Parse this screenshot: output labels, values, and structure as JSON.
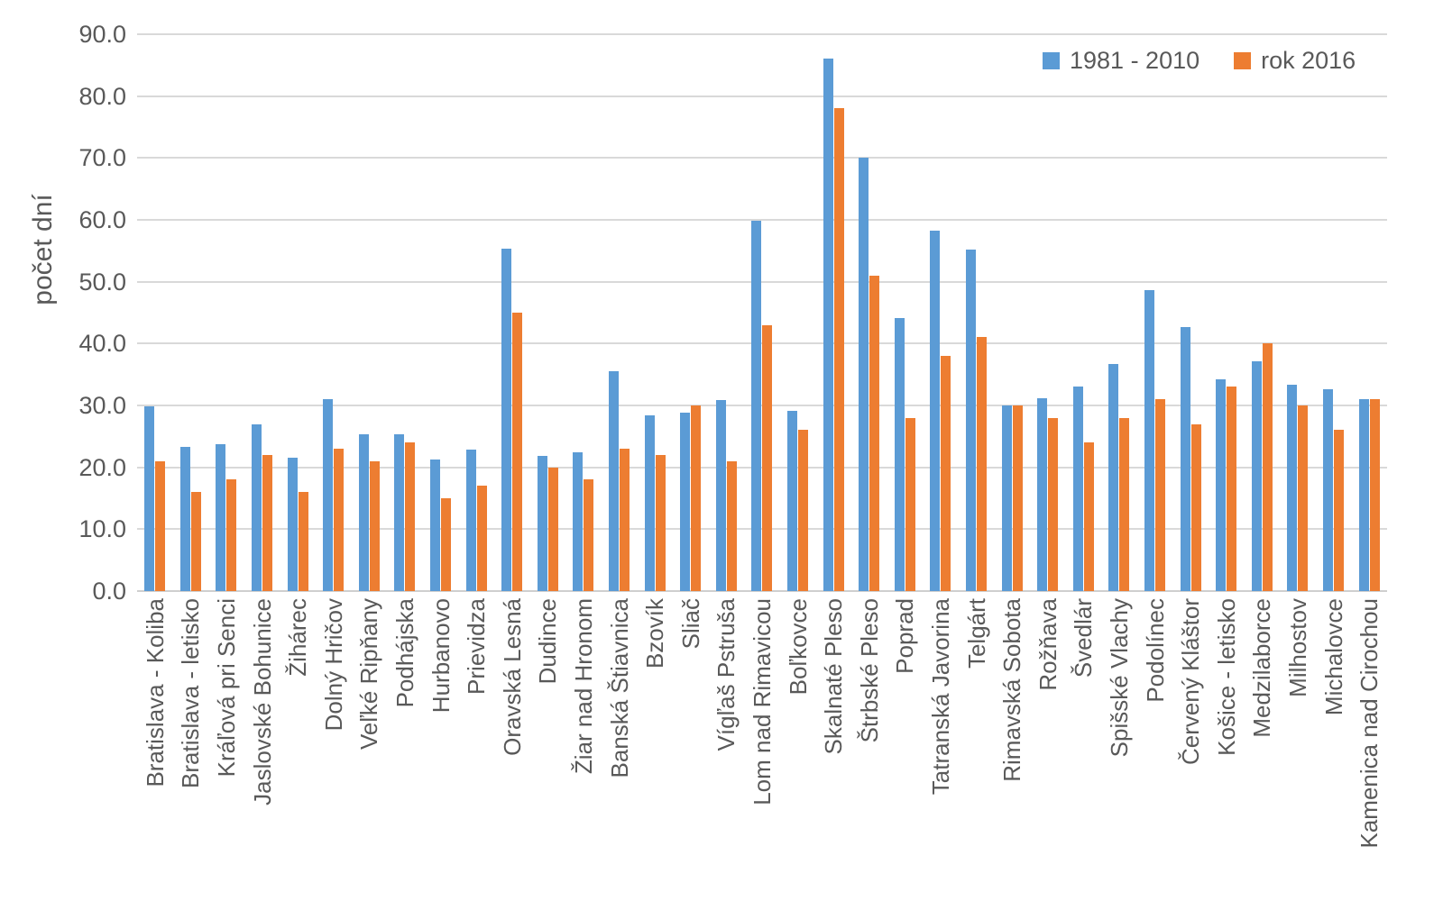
{
  "chart_data": {
    "type": "bar",
    "title": "",
    "ylabel": "počet dní",
    "xlabel": "",
    "ylim": [
      0,
      90
    ],
    "ytick_step": 10,
    "yticks": [
      "0.0",
      "10.0",
      "20.0",
      "30.0",
      "40.0",
      "50.0",
      "60.0",
      "70.0",
      "80.0",
      "90.0"
    ],
    "grid": true,
    "legend_position": "top-right",
    "categories": [
      "Bratislava - Koliba",
      "Bratislava - letisko",
      "Kráľová pri Senci",
      "Jaslovské Bohunice",
      "Žihárec",
      "Dolný Hričov",
      "Veľké Ripňany",
      "Podhájska",
      "Hurbanovo",
      "Prievidza",
      "Oravská Lesná",
      "Dudince",
      "Žiar nad Hronom",
      "Banská Štiavnica",
      "Bzovík",
      "Sliač",
      "Vígľaš Pstruša",
      "Lom nad Rimavicou",
      "Boľkovce",
      "Skalnaté Pleso",
      "Štrbské Pleso",
      "Poprad",
      "Tatranská Javorina",
      "Telgárt",
      "Rimavská Sobota",
      "Rožňava",
      "Švedlár",
      "Spišské Vlachy",
      "Podolínec",
      "Červený Kláštor",
      "Košice - letisko",
      "Medzilaborce",
      "Milhostov",
      "Michalovce",
      "Kamenica nad Cirochou"
    ],
    "series": [
      {
        "name": "1981 - 2010",
        "color": "#5B9BD5",
        "values": [
          29.8,
          23.3,
          23.7,
          27.0,
          21.5,
          31.0,
          25.4,
          25.3,
          21.3,
          22.8,
          55.3,
          21.9,
          22.4,
          35.5,
          28.4,
          28.9,
          30.9,
          59.9,
          29.1,
          86.0,
          70.1,
          44.2,
          58.3,
          55.2,
          30.0,
          31.2,
          33.0,
          36.7,
          48.7,
          42.7,
          34.2,
          37.2,
          33.3,
          32.6,
          31.0
        ]
      },
      {
        "name": "rok 2016",
        "color": "#ED7D31",
        "values": [
          21,
          16,
          18,
          22,
          16,
          23,
          21,
          24,
          15,
          17,
          45,
          20,
          18,
          23,
          22,
          30,
          21,
          43,
          26,
          78,
          51,
          28,
          38,
          41,
          30,
          28,
          24,
          28,
          31,
          27,
          33,
          40,
          30,
          26,
          31
        ]
      }
    ]
  },
  "colors": {
    "axis_text": "#595959",
    "gridline": "#D9D9D9",
    "series1": "#5B9BD5",
    "series2": "#ED7D31"
  }
}
